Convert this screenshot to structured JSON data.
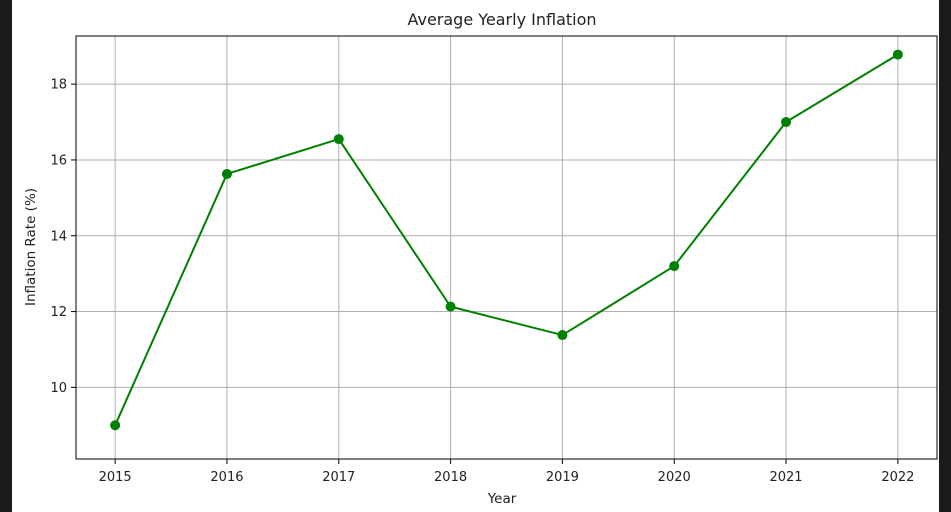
{
  "chart_data": {
    "type": "line",
    "title": "Average Yearly Inflation",
    "xlabel": "Year",
    "ylabel": "Inflation Rate (%)",
    "x": [
      2015,
      2016,
      2017,
      2018,
      2019,
      2020,
      2021,
      2022
    ],
    "series": [
      {
        "values": [
          9.0,
          15.63,
          16.55,
          12.13,
          11.38,
          13.2,
          17.0,
          18.78
        ],
        "color": "#008000",
        "marker": "circle"
      }
    ],
    "x_ticks": [
      "2015",
      "2016",
      "2017",
      "2018",
      "2019",
      "2020",
      "2021",
      "2022"
    ],
    "y_ticks": [
      "10",
      "12",
      "14",
      "16",
      "18"
    ],
    "xlim": [
      2014.65,
      2022.35
    ],
    "ylim": [
      8.11,
      19.27
    ],
    "grid": true,
    "legend": false
  }
}
